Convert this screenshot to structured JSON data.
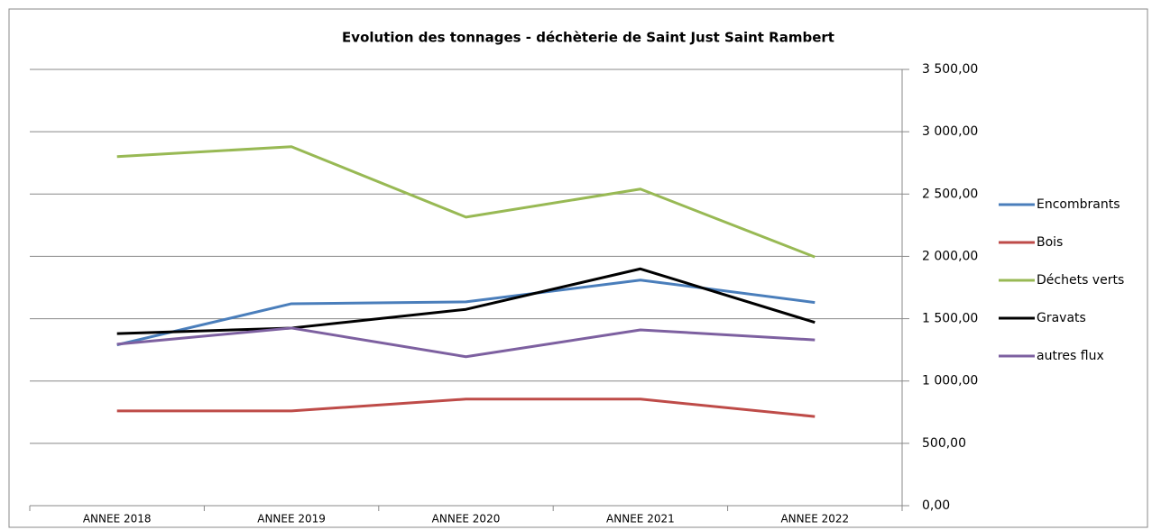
{
  "chart_data": {
    "type": "line",
    "title": "Evolution des tonnages - déchèterie de Saint Just Saint Rambert",
    "categories": [
      "ANNEE 2018",
      "ANNEE 2019",
      "ANNEE 2020",
      "ANNEE 2021",
      "ANNEE 2022"
    ],
    "series": [
      {
        "name": "Encombrants",
        "color": "#4a7ebb",
        "values": [
          1290,
          1620,
          1635,
          1810,
          1630
        ]
      },
      {
        "name": "Bois",
        "color": "#be4b48",
        "values": [
          760,
          760,
          855,
          855,
          715
        ]
      },
      {
        "name": "Déchets verts",
        "color": "#98b954",
        "values": [
          2800,
          2880,
          2315,
          2540,
          1995
        ]
      },
      {
        "name": "Gravats",
        "color": "#000000",
        "values": [
          1380,
          1425,
          1575,
          1900,
          1470
        ]
      },
      {
        "name": "autres flux",
        "color": "#7d60a0",
        "values": [
          1295,
          1425,
          1195,
          1410,
          1330
        ]
      }
    ],
    "ylim": [
      0,
      3500
    ],
    "yticks": [
      {
        "value": 0,
        "label": "0,00"
      },
      {
        "value": 500,
        "label": "500,00"
      },
      {
        "value": 1000,
        "label": "1 000,00"
      },
      {
        "value": 1500,
        "label": "1 500,00"
      },
      {
        "value": 2000,
        "label": "2 000,00"
      },
      {
        "value": 2500,
        "label": "2 500,00"
      },
      {
        "value": 3000,
        "label": "3 000,00"
      },
      {
        "value": 3500,
        "label": "3 500,00"
      }
    ],
    "grid": true,
    "legend": "right"
  }
}
